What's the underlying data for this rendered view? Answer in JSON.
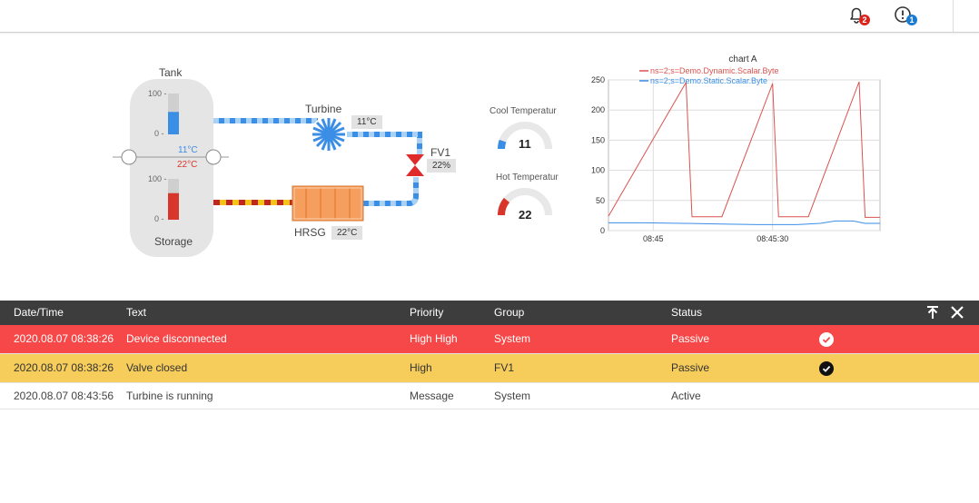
{
  "topbar": {
    "notifications": {
      "icon": "bell-icon",
      "count": "2",
      "badge_color": "#d9241e"
    },
    "info": {
      "icon": "alert-circle-icon",
      "count": "1",
      "badge_color": "#1b7bd2"
    }
  },
  "process": {
    "tank_label": "Tank",
    "storage_label": "Storage",
    "tank_scale_max": "100 -",
    "tank_scale_min": "0 -",
    "storage_scale_max": "100 -",
    "storage_scale_min": "0 -",
    "cold_temp": "11°C",
    "hot_temp": "22°C",
    "turbine_label": "Turbine",
    "turbine_temp": "11°C",
    "valve_label": "FV1",
    "valve_value": "22%",
    "hrsg_label": "HRSG",
    "hrsg_temp": "22°C",
    "tank_level": 0.55,
    "storage_level": 0.65,
    "colors": {
      "cold": "#3a8ee6",
      "hot": "#d9362b",
      "hot_stripe": "#f3c318",
      "valve": "#e02b2b",
      "hrsg": "#f59e5e"
    }
  },
  "gauges": [
    {
      "title": "Cool Temperatur",
      "value": "11",
      "level": 0.11,
      "color": "#3a8ee6"
    },
    {
      "title": "Hot Temperatur",
      "value": "22",
      "level": 0.22,
      "color": "#d9362b"
    }
  ],
  "chart_data": {
    "type": "line",
    "title": "chart A",
    "x_ticks": [
      "08:45",
      "08:45:30"
    ],
    "ylim": [
      0,
      250
    ],
    "y_ticks": [
      "0",
      "50",
      "100",
      "150",
      "200",
      "250"
    ],
    "grid": true,
    "legend_position": "top-left",
    "series": [
      {
        "name": "ns=2;s=Demo.Dynamic.Scalar.Byte",
        "color": "#d9534f",
        "x": [
          0,
          26,
          28,
          38,
          55,
          57,
          67,
          84,
          86,
          91
        ],
        "values": [
          24,
          246,
          23,
          23,
          244,
          23,
          23,
          247,
          22,
          22
        ]
      },
      {
        "name": "ns=2;s=Demo.Static.Scalar.Byte",
        "color": "#3a8ee6",
        "x": [
          0,
          12,
          25,
          38,
          50,
          63,
          71,
          76,
          82,
          86,
          91
        ],
        "values": [
          13,
          13,
          12,
          11,
          10,
          10,
          12,
          16,
          16,
          12,
          12
        ]
      }
    ]
  },
  "alarms": {
    "columns": [
      "Date/Time",
      "Text",
      "Priority",
      "Group",
      "Status"
    ],
    "rows": [
      {
        "datetime": "2020.08.07 08:38:26",
        "text": "Device disconnected",
        "priority": "High High",
        "group": "System",
        "status": "Passive"
      },
      {
        "datetime": "2020.08.07 08:38:26",
        "text": "Valve closed",
        "priority": "High",
        "group": "FV1",
        "status": "Passive"
      },
      {
        "datetime": "2020.08.07 08:43:56",
        "text": "Turbine is running",
        "priority": "Message",
        "group": "System",
        "status": "Active"
      }
    ],
    "row_colors": [
      "#f64848",
      "#f6cc5a",
      "#ffffff"
    ]
  }
}
